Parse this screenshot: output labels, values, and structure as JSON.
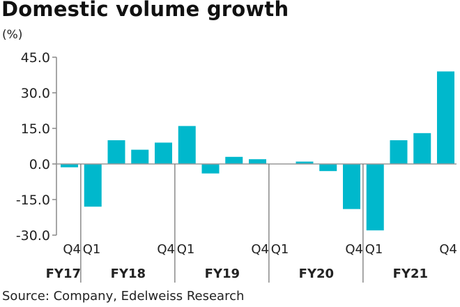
{
  "chart_data": {
    "type": "bar",
    "title": "Domestic volume growth",
    "ylabel": "(%)",
    "xlabel": "",
    "ylim": [
      -30,
      45
    ],
    "yticks": [
      45.0,
      30.0,
      15.0,
      0.0,
      -15.0,
      -30.0
    ],
    "ytick_labels": [
      "45.0",
      "30.0",
      "15.0",
      "0.0",
      "-15.0",
      "-30.0"
    ],
    "grid": false,
    "legend": "none",
    "bar_color": "#00B8CC",
    "categories": [
      "FY17 Q4",
      "FY18 Q1",
      "FY18 Q2",
      "FY18 Q3",
      "FY18 Q4",
      "FY19 Q1",
      "FY19 Q2",
      "FY19 Q3",
      "FY19 Q4",
      "FY20 Q1",
      "FY20 Q2",
      "FY20 Q3",
      "FY20 Q4",
      "FY21 Q1",
      "FY21 Q2",
      "FY21 Q3",
      "FY21 Q4"
    ],
    "values": [
      -1.4,
      -18.0,
      10.0,
      6.0,
      9.0,
      16.0,
      -4.0,
      3.0,
      2.0,
      0.0,
      1.0,
      -3.0,
      -19.0,
      -28.0,
      10.0,
      13.0,
      39.0
    ],
    "quarter_labels": [
      {
        "index": 0,
        "text": "Q4"
      },
      {
        "index": 1,
        "text": "Q1"
      },
      {
        "index": 4,
        "text": "Q4"
      },
      {
        "index": 5,
        "text": "Q1"
      },
      {
        "index": 8,
        "text": "Q4"
      },
      {
        "index": 9,
        "text": "Q1"
      },
      {
        "index": 12,
        "text": "Q4"
      },
      {
        "index": 13,
        "text": "Q1"
      },
      {
        "index": 16,
        "text": "Q4"
      }
    ],
    "fiscal_years": [
      {
        "label": "FY17",
        "start": 0,
        "end": 0
      },
      {
        "label": "FY18",
        "start": 1,
        "end": 4
      },
      {
        "label": "FY19",
        "start": 5,
        "end": 8
      },
      {
        "label": "FY20",
        "start": 9,
        "end": 12
      },
      {
        "label": "FY21",
        "start": 13,
        "end": 16
      }
    ]
  },
  "header": {
    "title": "Domestic volume growth",
    "unit": "(%)"
  },
  "footer": {
    "source": "Source: Company, Edelweiss Research"
  }
}
